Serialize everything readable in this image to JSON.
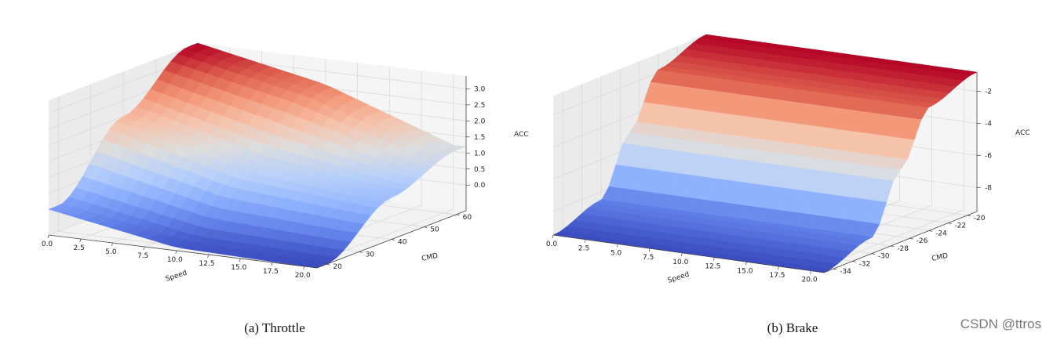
{
  "chart_data": [
    {
      "type": "surface",
      "caption": "(a) Throttle",
      "xlabel": "Speed",
      "ylabel": "CMD",
      "zlabel": "ACC",
      "xlim": [
        0,
        21
      ],
      "ylim": [
        17,
        63
      ],
      "zlim": [
        -0.8,
        3.4
      ],
      "xticks": [
        "0.0",
        "2.5",
        "5.0",
        "7.5",
        "10.0",
        "12.5",
        "15.0",
        "17.5",
        "20.0"
      ],
      "yticks": [
        "20",
        "30",
        "40",
        "50",
        "60"
      ],
      "zticks": [
        "0.0",
        "0.5",
        "1.0",
        "1.5",
        "2.0",
        "2.5",
        "3.0"
      ],
      "colormap": "coolwarm",
      "surface_samples": {
        "speed": [
          0,
          10,
          20
        ],
        "cmd": [
          20,
          40,
          60
        ],
        "acc": [
          [
            0.0,
            -0.7,
            -0.8
          ],
          [
            2.0,
            0.9,
            0.5
          ],
          [
            3.4,
            2.6,
            1.2
          ]
        ]
      }
    },
    {
      "type": "surface",
      "caption": "(b) Brake",
      "xlabel": "Speed",
      "ylabel": "CMD",
      "zlabel": "ACC",
      "xlim": [
        0,
        21
      ],
      "ylim": [
        -35,
        -19
      ],
      "zlim": [
        -9.5,
        -0.8
      ],
      "xticks": [
        "0.0",
        "2.5",
        "5.0",
        "7.5",
        "10.0",
        "12.5",
        "15.0",
        "17.5",
        "20.0"
      ],
      "yticks": [
        "-34",
        "-32",
        "-30",
        "-28",
        "-26",
        "-24",
        "-22",
        "-20"
      ],
      "zticks": [
        "-8",
        "-6",
        "-4",
        "-2"
      ],
      "colormap": "coolwarm",
      "surface_samples": {
        "cmd": [
          -35,
          -30,
          -27,
          -24,
          -19
        ],
        "acc": [
          -9.5,
          -8.5,
          -5.0,
          -1.8,
          -0.8
        ]
      }
    }
  ],
  "watermark": "CSDN @ttros"
}
